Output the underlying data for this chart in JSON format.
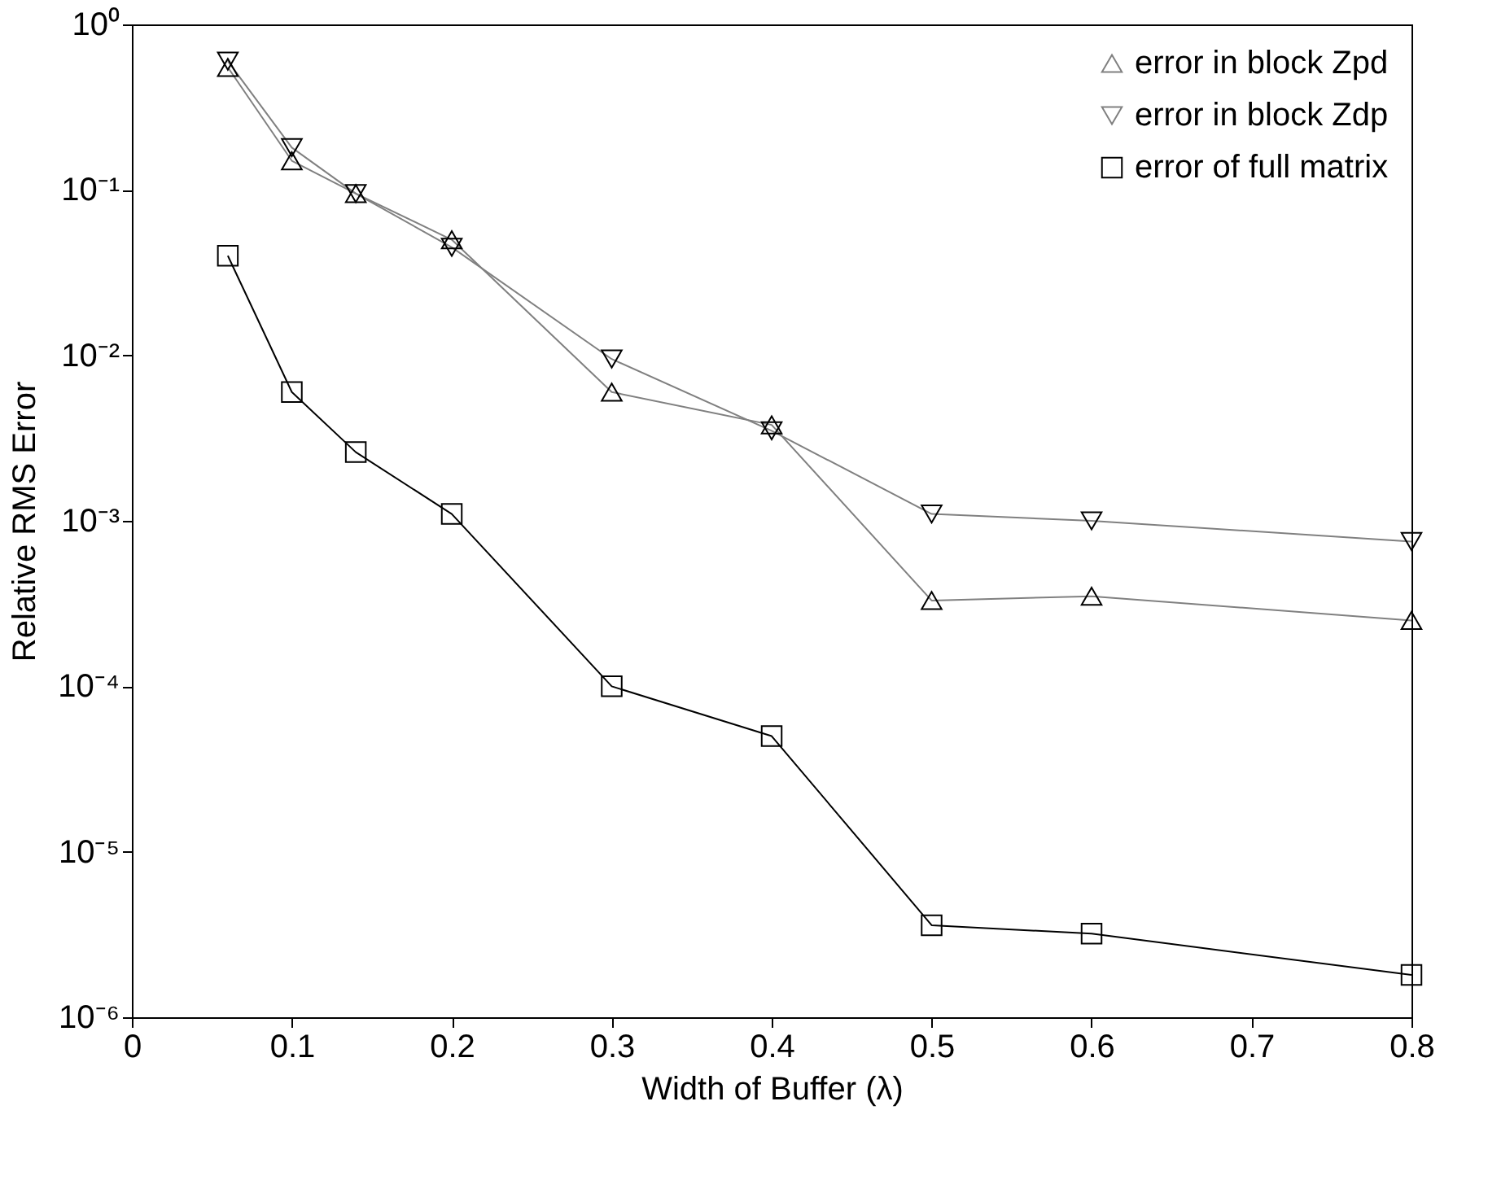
{
  "chart_data": {
    "type": "line",
    "xlabel": "Width of Buffer (λ)",
    "ylabel": "Relative RMS Error",
    "x": [
      0.06,
      0.1,
      0.14,
      0.2,
      0.3,
      0.4,
      0.5,
      0.6,
      0.8
    ],
    "series": [
      {
        "name": "error in block Zpd",
        "color": "#808080",
        "marker": "triangle",
        "values": [
          0.55,
          0.15,
          0.095,
          0.05,
          0.006,
          0.0038,
          0.00033,
          0.00035,
          0.00025
        ]
      },
      {
        "name": "error in block Zdp",
        "color": "#808080",
        "marker": "triangle-down",
        "values": [
          0.6,
          0.18,
          0.095,
          0.045,
          0.0095,
          0.0035,
          0.0011,
          0.001,
          0.00075
        ]
      },
      {
        "name": "error of full matrix",
        "color": "#000000",
        "marker": "square",
        "values": [
          0.04,
          0.006,
          0.0026,
          0.0011,
          0.0001,
          5e-05,
          3.6e-06,
          3.2e-06,
          1.8e-06
        ]
      }
    ],
    "log": "y",
    "xlim": [
      0,
      0.8
    ],
    "xticks": [
      0,
      0.1,
      0.2,
      0.3,
      0.4,
      0.5,
      0.6,
      0.7,
      0.8
    ],
    "ylim": [
      1e-06,
      1
    ],
    "yticks": [
      {
        "value": 1e-06,
        "label": "10⁻⁶"
      },
      {
        "value": 1e-05,
        "label": "10⁻⁵"
      },
      {
        "value": 0.0001,
        "label": "10⁻⁴"
      },
      {
        "value": 0.001,
        "label": "10⁻³"
      },
      {
        "value": 0.01,
        "label": "10⁻²"
      },
      {
        "value": 0.1,
        "label": "10⁻¹"
      },
      {
        "value": 1,
        "label": "10⁰"
      }
    ],
    "grid": false,
    "legend": "top right",
    "line_style": "solid"
  }
}
